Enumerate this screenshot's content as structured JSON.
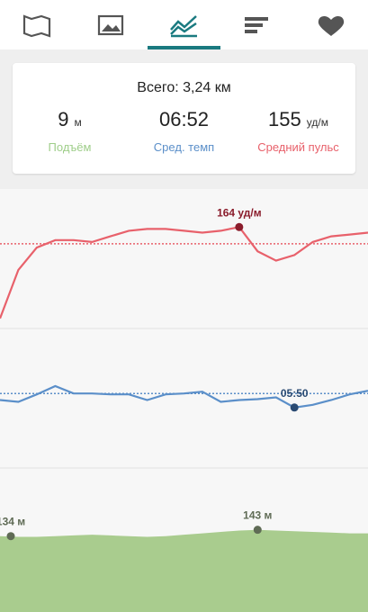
{
  "summary": {
    "total": "Всего: 3,24 км",
    "climb": {
      "value": "9",
      "unit": "м",
      "label": "Подъём"
    },
    "pace": {
      "value": "06:52",
      "label": "Сред. темп"
    },
    "heart_rate": {
      "value": "155",
      "unit": "уд/м",
      "label": "Средний пульс"
    }
  },
  "charts": [
    {
      "type": "line",
      "color": "#e8616b",
      "average": 155,
      "ylim": [
        112,
        182
      ],
      "values": [
        115,
        141,
        153,
        157,
        157,
        156,
        159,
        162,
        163,
        163,
        162,
        161,
        162,
        164,
        151,
        146,
        149,
        156,
        159,
        160,
        161
      ],
      "value_labels": [
        null,
        null,
        null,
        null,
        null,
        null,
        null,
        null,
        null,
        null,
        null,
        null,
        null,
        "164 уд/м",
        null,
        null,
        null,
        null,
        null,
        null,
        null
      ]
    },
    {
      "type": "line",
      "color": "#5b8fc9",
      "average": 412,
      "ylim": [
        102,
        680
      ],
      "values": [
        383,
        375,
        408,
        445,
        412,
        412,
        408,
        408,
        383,
        408,
        412,
        420,
        375,
        383,
        387,
        395,
        350,
        362,
        383,
        408,
        424
      ],
      "value_labels": [
        null,
        null,
        null,
        null,
        null,
        null,
        null,
        null,
        null,
        null,
        null,
        null,
        null,
        null,
        null,
        null,
        "05:50",
        null,
        null,
        null,
        null
      ]
    },
    {
      "type": "area",
      "color": "#a9cc8e",
      "ylim": [
        26,
        231
      ],
      "values": [
        134,
        133,
        133,
        134,
        135,
        136,
        135,
        134,
        133,
        134,
        136,
        138,
        140,
        142,
        143,
        142,
        141,
        140,
        139,
        138,
        138
      ],
      "value_labels": [
        "134 м",
        null,
        null,
        null,
        null,
        null,
        null,
        null,
        null,
        null,
        null,
        null,
        null,
        null,
        "143 м",
        null,
        null,
        null,
        null,
        null,
        null
      ]
    }
  ]
}
